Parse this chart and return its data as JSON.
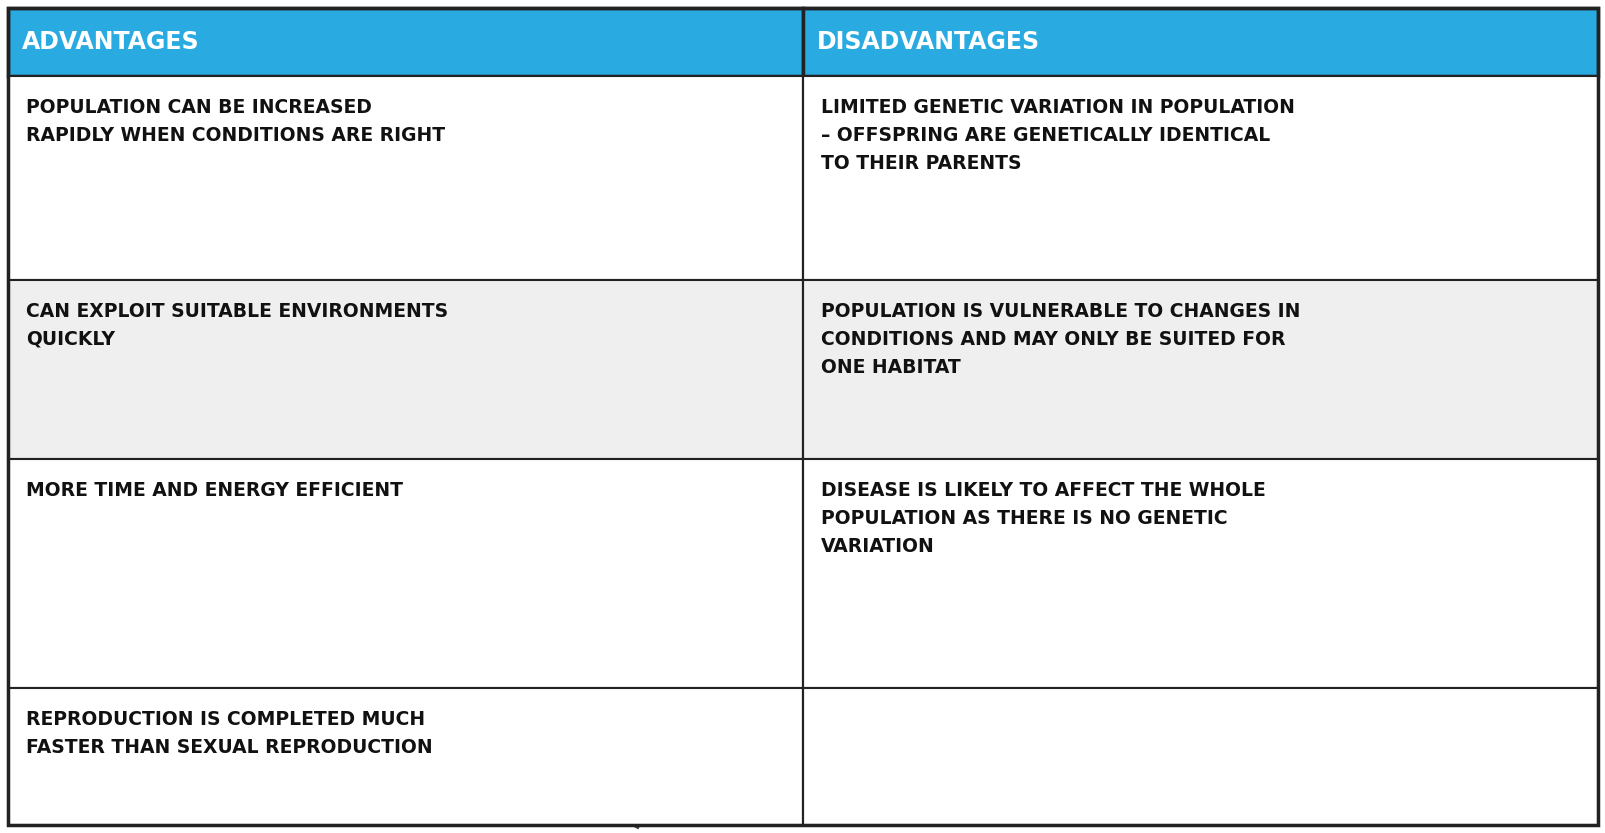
{
  "title_left": "ADVANTAGES",
  "title_right": "DISADVANTAGES",
  "header_color": "#29ABE2",
  "header_text_color": "#FFFFFF",
  "cell_bg_white": "#FFFFFF",
  "cell_bg_gray": "#EBEBEB",
  "border_color": "#222222",
  "text_color": "#111111",
  "advantages": [
    "POPULATION CAN BE INCREASED\nRAPIDLY WHEN CONDITIONS ARE RIGHT",
    "CAN EXPLOIT SUITABLE ENVIRONMENTS\nQUICKLY",
    "MORE TIME AND ENERGY EFFICIENT",
    "REPRODUCTION IS COMPLETED MUCH\nFASTER THAN SEXUAL REPRODUCTION"
  ],
  "disadvantages": [
    "LIMITED GENETIC VARIATION IN POPULATION\n– OFFSPRING ARE GENETICALLY IDENTICAL\nTO THEIR PARENTS",
    "POPULATION IS VULNERABLE TO CHANGES IN\nCONDITIONS AND MAY ONLY BE SUITED FOR\nONE HABITAT",
    "DISEASE IS LIKELY TO AFFECT THE WHOLE\nPOPULATION AS THERE IS NO GENETIC\nVARIATION",
    ""
  ],
  "font_size": 13.5,
  "header_font_size": 17,
  "watermark_blue": "#29ABE2",
  "watermark_black": "#111111",
  "watermark_alpha_blue": 0.55,
  "watermark_alpha_black": 0.82
}
